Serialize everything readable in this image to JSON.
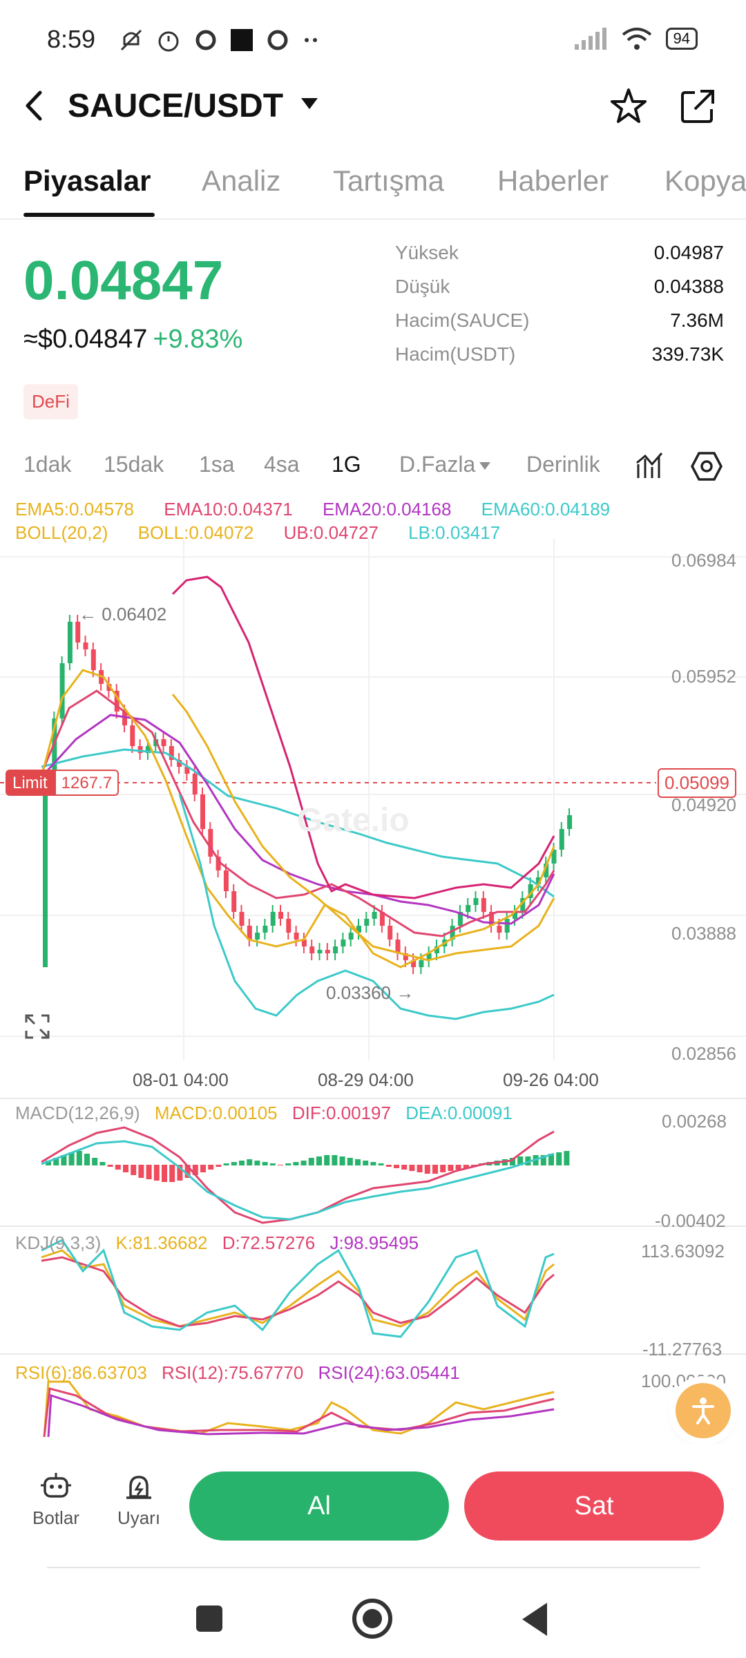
{
  "status_bar": {
    "time": "8:59",
    "battery": "94"
  },
  "header": {
    "pair": "SAUCE/USDT"
  },
  "tabs": [
    {
      "label": "Piyasalar",
      "active": true
    },
    {
      "label": "Analiz"
    },
    {
      "label": "Tartışma"
    },
    {
      "label": "Haberler"
    },
    {
      "label": "Kopya"
    }
  ],
  "summary": {
    "last_price": "0.04847",
    "usd_price": "≈$0.04847",
    "change": "+9.83%",
    "tag": "DeFi",
    "stats": [
      {
        "label": "Yüksek",
        "value": "0.04987"
      },
      {
        "label": "Düşük",
        "value": "0.04388"
      },
      {
        "label": "Hacim(SAUCE)",
        "value": "7.36M"
      },
      {
        "label": "Hacim(USDT)",
        "value": "339.73K"
      }
    ]
  },
  "intervals": {
    "i1": "1dak",
    "i2": "15dak",
    "i3": "1sa",
    "i4": "4sa",
    "i5": "1G",
    "more": "D.Fazla",
    "depth": "Derinlik"
  },
  "indicators": {
    "ema5": "EMA5:0.04578",
    "ema10": "EMA10:0.04371",
    "ema20": "EMA20:0.04168",
    "ema60": "EMA60:0.04189",
    "boll": "BOLL(20,2)",
    "boll_mid": "BOLL:0.04072",
    "ub": "UB:0.04727",
    "lb": "LB:0.03417"
  },
  "price_axis": [
    "0.06984",
    "0.05952",
    "0.04920",
    "0.03888",
    "0.02856"
  ],
  "time_axis": [
    "08-01 04:00",
    "08-29 04:00",
    "09-26 04:00"
  ],
  "limit": {
    "label": "Limit",
    "qty": "1267.7",
    "price": "0.05099"
  },
  "annotations": {
    "high": "← 0.06402",
    "low": "0.03360 →"
  },
  "watermark": "Gate.io",
  "macd": {
    "title": "MACD(12,26,9)",
    "macd": "MACD:0.00105",
    "dif": "DIF:0.00197",
    "dea": "DEA:0.00091",
    "axis_top": "0.00268",
    "axis_bottom": "-0.00402"
  },
  "kdj": {
    "title": "KDJ(9,3,3)",
    "k": "K:81.36682",
    "d": "D:72.57276",
    "j": "J:98.95495",
    "axis_top": "113.63092",
    "axis_bottom": "-11.27763"
  },
  "rsi": {
    "r6": "RSI(6):86.63703",
    "r12": "RSI(12):75.67770",
    "r24": "RSI(24):63.05441",
    "axis_top": "100.00000"
  },
  "bottom": {
    "bots": "Botlar",
    "alert": "Uyarı",
    "buy": "Al",
    "sell": "Sat"
  },
  "colors": {
    "up": "#27b36b",
    "down": "#ef4b5d",
    "ema5": "#e8b21c",
    "ema10": "#e0456f",
    "ema20": "#b235c1",
    "ema60": "#3cc9c9"
  }
}
